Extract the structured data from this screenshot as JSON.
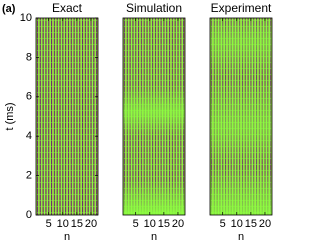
{
  "chart_data": [
    {
      "type": "heatmap",
      "panel_label": "(a)",
      "title": "Exact",
      "xlabel": "n",
      "ylabel": "t (ms)",
      "xlim": [
        0.5,
        22.5
      ],
      "xticks": [
        5,
        10,
        15,
        20
      ],
      "ylim": [
        0,
        10
      ],
      "yticks": [
        0,
        2,
        4,
        6,
        8,
        10
      ]
    },
    {
      "type": "heatmap",
      "title": "Simulation",
      "xlabel": "n",
      "xlim": [
        0.5,
        22.5
      ],
      "xticks": [
        5,
        10,
        15,
        20
      ],
      "ylim": [
        0,
        10
      ]
    },
    {
      "type": "heatmap",
      "title": "Experiment",
      "xlabel": "n",
      "xlim": [
        0.5,
        22.5
      ],
      "xticks": [
        5,
        10,
        15,
        20
      ],
      "ylim": [
        0,
        10
      ]
    }
  ]
}
